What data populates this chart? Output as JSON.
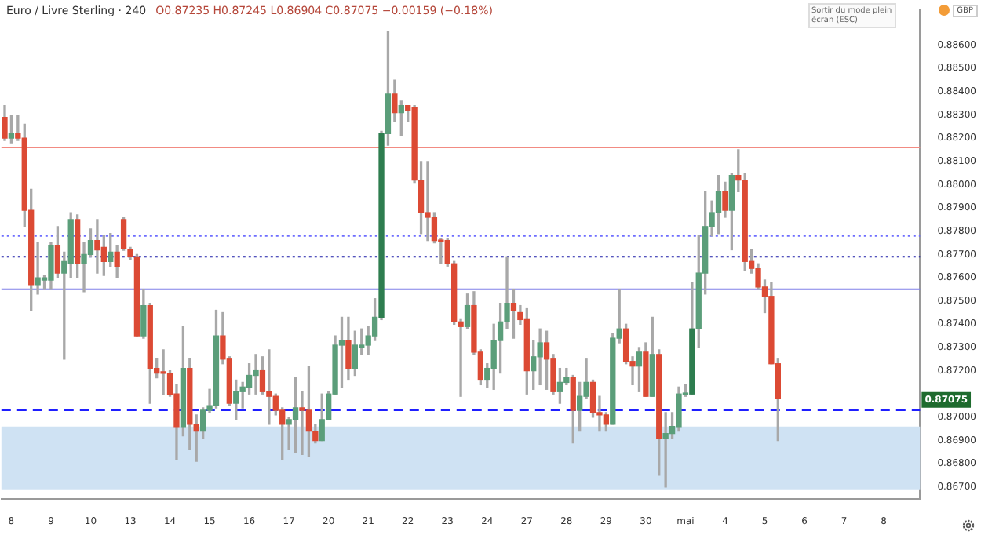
{
  "chart_data": {
    "type": "candlestick",
    "title": "Euro / Livre Sterling · 240",
    "subtitle": "O0.87235 H0.87245 L0.86904 C0.87075 −0.00159 (−0.18%)",
    "annotations": [
      "Sortir du mode plein écran (ESC)",
      "GBP",
      {
        "text": "0.87075",
        "y": 0.87075
      }
    ],
    "categories": [
      null,
      "8",
      null,
      null,
      null,
      null,
      null,
      "9",
      null,
      null,
      null,
      null,
      null,
      "10",
      null,
      null,
      null,
      null,
      null,
      "13",
      null,
      null,
      null,
      null,
      null,
      "14",
      null,
      null,
      null,
      null,
      null,
      "15",
      null,
      null,
      null,
      null,
      null,
      "16",
      null,
      null,
      null,
      null,
      null,
      "17",
      null,
      null,
      null,
      null,
      null,
      "20",
      null,
      null,
      null,
      null,
      null,
      "21",
      null,
      null,
      null,
      null,
      null,
      "22",
      null,
      null,
      null,
      null,
      null,
      "23",
      null,
      null,
      null,
      null,
      null,
      "24",
      null,
      null,
      null,
      null,
      null,
      "27",
      null,
      null,
      null,
      null,
      null,
      "28",
      null,
      null,
      null,
      null,
      null,
      "29",
      null,
      null,
      null,
      null,
      null,
      "30",
      null,
      null,
      null,
      null,
      null,
      "mai",
      null,
      null,
      null,
      null,
      null,
      "4",
      null,
      null,
      null,
      null,
      null,
      "5",
      null,
      null,
      null,
      null,
      null,
      "6",
      null,
      null,
      null,
      null,
      null,
      "7",
      null,
      null,
      null,
      null,
      null,
      "8",
      null,
      null,
      null,
      null,
      null
    ],
    "ohlc": [
      [
        0.8829,
        0.8834,
        0.8819,
        0.882
      ],
      [
        0.882,
        0.883,
        0.8818,
        0.8822
      ],
      [
        0.8822,
        0.883,
        0.8819,
        0.882
      ],
      [
        0.882,
        0.8826,
        0.8782,
        0.8789
      ],
      [
        0.8789,
        0.8798,
        0.8746,
        0.8757
      ],
      [
        0.8757,
        0.8775,
        0.8753,
        0.876
      ],
      [
        0.8759,
        0.8761,
        0.8755,
        0.876
      ],
      [
        0.8759,
        0.8775,
        0.8755,
        0.8774
      ],
      [
        0.8774,
        0.8782,
        0.876,
        0.8762
      ],
      [
        0.8762,
        0.8771,
        0.8725,
        0.8767
      ],
      [
        0.8766,
        0.8788,
        0.876,
        0.8785
      ],
      [
        0.8785,
        0.8787,
        0.876,
        0.8766
      ],
      [
        0.8766,
        0.8775,
        0.8754,
        0.877
      ],
      [
        0.877,
        0.8781,
        0.8769,
        0.8776
      ],
      [
        0.8776,
        0.8785,
        0.8762,
        0.8772
      ],
      [
        0.8773,
        0.8778,
        0.8761,
        0.8767
      ],
      [
        0.8767,
        0.8779,
        0.8765,
        0.8771
      ],
      [
        0.8771,
        0.8774,
        0.876,
        0.8765
      ],
      [
        0.8785,
        0.8786,
        0.87718,
        0.87725
      ],
      [
        0.8772,
        0.8773,
        0.8768,
        0.8769
      ],
      [
        0.8769,
        0.877,
        0.8735,
        0.8735
      ],
      [
        0.8735,
        0.8755,
        0.8734,
        0.8748
      ],
      [
        0.8748,
        0.8749,
        0.8706,
        0.8721
      ],
      [
        0.8721,
        0.8725,
        0.8717,
        0.8719
      ],
      [
        0.87191,
        0.8729,
        0.871,
        0.87189
      ],
      [
        0.8719,
        0.872,
        0.8709,
        0.871
      ],
      [
        0.871,
        0.8714,
        0.8682,
        0.8696
      ],
      [
        0.8696,
        0.8739,
        0.8692,
        0.8721
      ],
      [
        0.8721,
        0.8725,
        0.8686,
        0.8697
      ],
      [
        0.8697,
        0.8701,
        0.8681,
        0.8694
      ],
      [
        0.8694,
        0.8704,
        0.8691,
        0.8703
      ],
      [
        0.8703,
        0.8712,
        0.8702,
        0.8705
      ],
      [
        0.8705,
        0.8746,
        0.8704,
        0.8735
      ],
      [
        0.8735,
        0.8745,
        0.8723,
        0.8725
      ],
      [
        0.8725,
        0.8726,
        0.8705,
        0.8706
      ],
      [
        0.8706,
        0.8716,
        0.8699,
        0.8711
      ],
      [
        0.8711,
        0.8715,
        0.8704,
        0.8713
      ],
      [
        0.8713,
        0.8723,
        0.871,
        0.8718
      ],
      [
        0.8718,
        0.8727,
        0.871,
        0.872
      ],
      [
        0.872,
        0.8726,
        0.871,
        0.8711
      ],
      [
        0.8711,
        0.8729,
        0.8697,
        0.8709
      ],
      [
        0.8709,
        0.871,
        0.8701,
        0.8703
      ],
      [
        0.8703,
        0.8704,
        0.8682,
        0.8697
      ],
      [
        0.8697,
        0.87,
        0.8686,
        0.8699
      ],
      [
        0.8699,
        0.8717,
        0.8685,
        0.8704
      ],
      [
        0.8704,
        0.8711,
        0.8684,
        0.8703
      ],
      [
        0.8703,
        0.8722,
        0.8683,
        0.8694
      ],
      [
        0.8694,
        0.8697,
        0.8689,
        0.869
      ],
      [
        0.869,
        0.871,
        0.869,
        0.8699
      ],
      [
        0.8699,
        0.8711,
        0.8699,
        0.871
      ],
      [
        0.871,
        0.8735,
        0.871,
        0.8731
      ],
      [
        0.8731,
        0.8743,
        0.8713,
        0.8733
      ],
      [
        0.8733,
        0.8743,
        0.8716,
        0.8721
      ],
      [
        0.8721,
        0.8737,
        0.8718,
        0.8731
      ],
      [
        0.873,
        0.8738,
        0.8727,
        0.8731
      ],
      [
        0.8731,
        0.8739,
        0.8727,
        0.8735
      ],
      [
        0.8735,
        0.8751,
        0.8733,
        0.8743
      ],
      [
        0.8743,
        0.8823,
        0.8742,
        0.8822
      ],
      [
        0.8822,
        0.8866,
        0.8817,
        0.8839
      ],
      [
        0.8839,
        0.8845,
        0.8827,
        0.8831
      ],
      [
        0.8831,
        0.8836,
        0.8821,
        0.8834
      ],
      [
        0.8834,
        0.8834,
        0.8827,
        0.8832
      ],
      [
        0.8833,
        0.8834,
        0.8801,
        0.8802
      ],
      [
        0.8802,
        0.881,
        0.8779,
        0.8788
      ],
      [
        0.8788,
        0.881,
        0.8776,
        0.8786
      ],
      [
        0.8786,
        0.8788,
        0.8775,
        0.8776
      ],
      [
        0.8776,
        0.8777,
        0.8766,
        0.87755
      ],
      [
        0.8776,
        0.8777,
        0.8765,
        0.8766
      ],
      [
        0.8766,
        0.8767,
        0.874,
        0.8741
      ],
      [
        0.8741,
        0.8742,
        0.8709,
        0.8739
      ],
      [
        0.8739,
        0.8753,
        0.8738,
        0.8748
      ],
      [
        0.8748,
        0.8754,
        0.8727,
        0.8728
      ],
      [
        0.8728,
        0.8729,
        0.8714,
        0.8716
      ],
      [
        0.8716,
        0.8723,
        0.8713,
        0.8721
      ],
      [
        0.8721,
        0.874,
        0.8712,
        0.8733
      ],
      [
        0.8733,
        0.8749,
        0.8719,
        0.8741
      ],
      [
        0.8741,
        0.8769,
        0.8738,
        0.8749
      ],
      [
        0.8749,
        0.8755,
        0.8734,
        0.8746
      ],
      [
        0.8745,
        0.8748,
        0.874,
        0.8742
      ],
      [
        0.8742,
        0.8747,
        0.871,
        0.872
      ],
      [
        0.872,
        0.8733,
        0.8712,
        0.8726
      ],
      [
        0.8726,
        0.8738,
        0.8714,
        0.8732
      ],
      [
        0.8732,
        0.8737,
        0.8712,
        0.8725
      ],
      [
        0.8725,
        0.8727,
        0.871,
        0.8711
      ],
      [
        0.8711,
        0.8721,
        0.8706,
        0.8715
      ],
      [
        0.8715,
        0.8721,
        0.8714,
        0.8717
      ],
      [
        0.8717,
        0.8718,
        0.8689,
        0.8703
      ],
      [
        0.8703,
        0.8715,
        0.8694,
        0.8709
      ],
      [
        0.8709,
        0.8725,
        0.8708,
        0.8715
      ],
      [
        0.8715,
        0.8716,
        0.87,
        0.8702
      ],
      [
        0.8702,
        0.8709,
        0.8694,
        0.8701
      ],
      [
        0.8701,
        0.8702,
        0.8694,
        0.8697
      ],
      [
        0.8697,
        0.8736,
        0.8697,
        0.8734
      ],
      [
        0.8734,
        0.8755,
        0.8732,
        0.8738
      ],
      [
        0.8738,
        0.874,
        0.8723,
        0.8724
      ],
      [
        0.8724,
        0.8726,
        0.8714,
        0.8722
      ],
      [
        0.8722,
        0.873,
        0.8711,
        0.8728
      ],
      [
        0.8728,
        0.8732,
        0.8709,
        0.8709
      ],
      [
        0.8709,
        0.8743,
        0.8709,
        0.8727
      ],
      [
        0.8727,
        0.8729,
        0.8675,
        0.8691
      ],
      [
        0.8691,
        0.8702,
        0.867,
        0.8693
      ],
      [
        0.8693,
        0.8702,
        0.8691,
        0.8696
      ],
      [
        0.8696,
        0.8713,
        0.8694,
        0.871
      ],
      [
        0.87097,
        0.8714,
        0.8709,
        0.87104
      ],
      [
        0.871,
        0.8758,
        0.871,
        0.8738
      ],
      [
        0.8738,
        0.8778,
        0.873,
        0.8762
      ],
      [
        0.8762,
        0.8797,
        0.8753,
        0.8782
      ],
      [
        0.8782,
        0.8793,
        0.8778,
        0.8788
      ],
      [
        0.8788,
        0.8804,
        0.8779,
        0.8797
      ],
      [
        0.8797,
        0.8801,
        0.8786,
        0.8789
      ],
      [
        0.8789,
        0.8805,
        0.8772,
        0.8804
      ],
      [
        0.8804,
        0.8815,
        0.8797,
        0.8802
      ],
      [
        0.8802,
        0.8805,
        0.8763,
        0.8767
      ],
      [
        0.8767,
        0.8772,
        0.8762,
        0.8764
      ],
      [
        0.8764,
        0.8766,
        0.8755,
        0.8756
      ],
      [
        0.8756,
        0.8759,
        0.8745,
        0.8752
      ],
      [
        0.8752,
        0.8758,
        0.8723,
        0.8723
      ],
      [
        0.8723,
        0.8725,
        0.869,
        0.8708
      ],
      null,
      null,
      null,
      null,
      null,
      null,
      null,
      null,
      null,
      null,
      null,
      null,
      null,
      null,
      null,
      null,
      null,
      null,
      null,
      null,
      null
    ],
    "colors": [
      "#dc4a34",
      "#5b9e7a",
      "#dc4a34",
      "#dc4a34",
      "#dc4a34",
      "#5b9e7a",
      "#5b9e7a",
      "#5b9e7a",
      "#dc4a34",
      "#5b9e7a",
      "#5b9e7a",
      "#dc4a34",
      "#5b9e7a",
      "#5b9e7a",
      "#dc4a34",
      "#dc4a34",
      "#5b9e7a",
      "#dc4a34",
      "#dc4a34",
      "#dc4a34",
      "#dc4a34",
      "#5b9e7a",
      "#dc4a34",
      "#dc4a34",
      "#dc4a34",
      "#dc4a34",
      "#dc4a34",
      "#5b9e7a",
      "#dc4a34",
      "#dc4a34",
      "#5b9e7a",
      "#5b9e7a",
      "#5b9e7a",
      "#dc4a34",
      "#dc4a34",
      "#5b9e7a",
      "#5b9e7a",
      "#5b9e7a",
      "#5b9e7a",
      "#dc4a34",
      "#dc4a34",
      "#dc4a34",
      "#dc4a34",
      "#5b9e7a",
      "#5b9e7a",
      "#dc4a34",
      "#dc4a34",
      "#dc4a34",
      "#5b9e7a",
      "#5b9e7a",
      "#5b9e7a",
      "#5b9e7a",
      "#dc4a34",
      "#5b9e7a",
      "#5b9e7a",
      "#5b9e7a",
      "#5b9e7a",
      "#2e7d4f",
      "#5b9e7a",
      "#dc4a34",
      "#5b9e7a",
      "#dc4a34",
      "#dc4a34",
      "#dc4a34",
      "#dc4a34",
      "#dc4a34",
      "#dc4a34",
      "#dc4a34",
      "#dc4a34",
      "#dc4a34",
      "#5b9e7a",
      "#dc4a34",
      "#dc4a34",
      "#5b9e7a",
      "#5b9e7a",
      "#5b9e7a",
      "#5b9e7a",
      "#dc4a34",
      "#dc4a34",
      "#dc4a34",
      "#5b9e7a",
      "#5b9e7a",
      "#dc4a34",
      "#dc4a34",
      "#5b9e7a",
      "#5b9e7a",
      "#dc4a34",
      "#5b9e7a",
      "#5b9e7a",
      "#dc4a34",
      "#dc4a34",
      "#dc4a34",
      "#5b9e7a",
      "#5b9e7a",
      "#dc4a34",
      "#dc4a34",
      "#5b9e7a",
      "#dc4a34",
      "#5b9e7a",
      "#dc4a34",
      "#5b9e7a",
      "#5b9e7a",
      "#5b9e7a",
      "#5b9e7a",
      "#2e7d4f",
      "#5b9e7a",
      "#5b9e7a",
      "#5b9e7a",
      "#5b9e7a",
      "#dc4a34",
      "#5b9e7a",
      "#dc4a34",
      "#dc4a34",
      "#dc4a34",
      "#dc4a34",
      "#dc4a34",
      "#dc4a34",
      "#dc4a34",
      null,
      null,
      null,
      null,
      null,
      null,
      null,
      null,
      null,
      null,
      null,
      null,
      null,
      null,
      null,
      null,
      null,
      null,
      null,
      null,
      null
    ],
    "ylim": [
      0.8665,
      0.8875
    ],
    "yticks": [
      {
        "value": 0.867,
        "label": "0.86700"
      },
      {
        "value": 0.868,
        "label": "0.86800"
      },
      {
        "value": 0.869,
        "label": "0.86900"
      },
      {
        "value": 0.87,
        "label": "0.87000"
      },
      {
        "value": 0.872,
        "label": "0.87200"
      },
      {
        "value": 0.873,
        "label": "0.87300"
      },
      {
        "value": 0.874,
        "label": "0.87400"
      },
      {
        "value": 0.875,
        "label": "0.87500"
      },
      {
        "value": 0.876,
        "label": "0.87600"
      },
      {
        "value": 0.877,
        "label": "0.87700"
      },
      {
        "value": 0.878,
        "label": "0.87800"
      },
      {
        "value": 0.879,
        "label": "0.87900"
      },
      {
        "value": 0.88,
        "label": "0.88000"
      },
      {
        "value": 0.881,
        "label": "0.88100"
      },
      {
        "value": 0.882,
        "label": "0.88200"
      },
      {
        "value": 0.883,
        "label": "0.88300"
      },
      {
        "value": 0.884,
        "label": "0.88400"
      },
      {
        "value": 0.885,
        "label": "0.88500"
      },
      {
        "value": 0.886,
        "label": "0.88600"
      }
    ],
    "ref_lines": [
      {
        "axis": "y",
        "value": 0.8816,
        "color": "#f28b82",
        "line_style": "solid"
      },
      {
        "axis": "y",
        "value": 0.8778,
        "color": "#6e6eff",
        "line_style": "dotted"
      },
      {
        "axis": "y",
        "value": 0.8769,
        "color": "#1c1ca8",
        "line_style": "dotted"
      },
      {
        "axis": "y",
        "value": 0.8755,
        "color": "#8080e8",
        "line_style": "solid"
      },
      {
        "axis": "y",
        "value": 0.8703,
        "color": "#1f1fff",
        "line_style": "dashed"
      }
    ],
    "bands": [
      {
        "axis": "y",
        "from": 0.8669,
        "to": 0.8696,
        "color": "#cfe2f3"
      }
    ]
  }
}
